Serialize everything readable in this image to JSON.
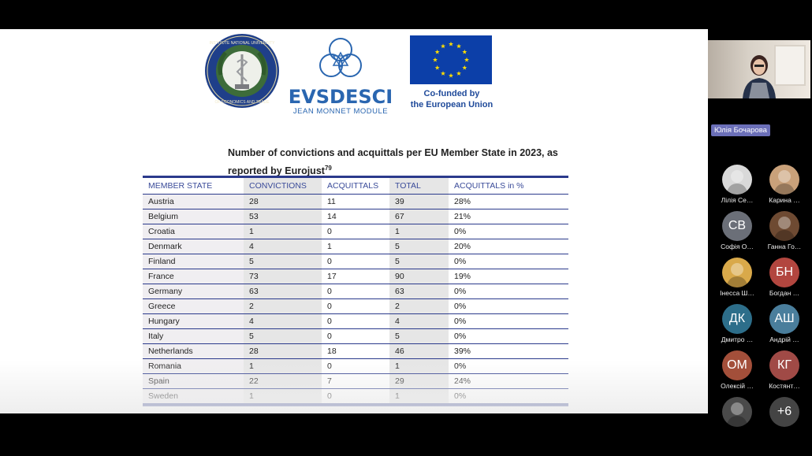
{
  "slide": {
    "evs_title": "EVSDESCI",
    "evs_subtitle": "JEAN MONNET MODULE",
    "eu_line1": "Co-funded by",
    "eu_line2": "the European Union",
    "seal_caption_top": "INSTITUTE NATIONAL UNIVERSITY",
    "seal_caption_bottom": "OF ECONOMICS AND TRADE",
    "table_caption": "Number of convictions and acquittals per EU Member State in 2023, as reported by Eurojust",
    "footnote_ref": "79",
    "headers": [
      "MEMBER STATE",
      "CONVICTIONS",
      "ACQUITTALS",
      "TOTAL",
      "ACQUITTALS in %"
    ],
    "rows": [
      [
        "Austria",
        "28",
        "11",
        "39",
        "28%"
      ],
      [
        "Belgium",
        "53",
        "14",
        "67",
        "21%"
      ],
      [
        "Croatia",
        "1",
        "0",
        "1",
        "0%"
      ],
      [
        "Denmark",
        "4",
        "1",
        "5",
        "20%"
      ],
      [
        "Finland",
        "5",
        "0",
        "5",
        "0%"
      ],
      [
        "France",
        "73",
        "17",
        "90",
        "19%"
      ],
      [
        "Germany",
        "63",
        "0",
        "63",
        "0%"
      ],
      [
        "Greece",
        "2",
        "0",
        "2",
        "0%"
      ],
      [
        "Hungary",
        "4",
        "0",
        "4",
        "0%"
      ],
      [
        "Italy",
        "5",
        "0",
        "5",
        "0%"
      ],
      [
        "Netherlands",
        "28",
        "18",
        "46",
        "39%"
      ],
      [
        "Romania",
        "1",
        "0",
        "1",
        "0%"
      ],
      [
        "Spain",
        "22",
        "7",
        "29",
        "24%"
      ],
      [
        "Sweden",
        "1",
        "0",
        "1",
        "0%"
      ]
    ]
  },
  "speaker": {
    "name": "Юлія Бочарова"
  },
  "participants": [
    {
      "initials": "",
      "name": "Лілія Се…",
      "color": "#d9d9d9",
      "photo": true
    },
    {
      "initials": "",
      "name": "Карина …",
      "color": "#c9a17a",
      "photo": true
    },
    {
      "initials": "СВ",
      "name": "Софія О…",
      "color": "#6b6f78",
      "photo": false
    },
    {
      "initials": "",
      "name": "Ганна Го…",
      "color": "#6e4a32",
      "photo": true
    },
    {
      "initials": "",
      "name": "Інесса Ш…",
      "color": "#d9a94a",
      "photo": true
    },
    {
      "initials": "БН",
      "name": "Богдан …",
      "color": "#b2463f",
      "photo": false
    },
    {
      "initials": "ДК",
      "name": "Дмитро …",
      "color": "#2d6e8a",
      "photo": false
    },
    {
      "initials": "АШ",
      "name": "Андрій …",
      "color": "#4a7e9c",
      "photo": false
    },
    {
      "initials": "ОМ",
      "name": "Олексій …",
      "color": "#a34f3a",
      "photo": false
    },
    {
      "initials": "КГ",
      "name": "Костянт…",
      "color": "#a04a46",
      "photo": false
    },
    {
      "initials": "",
      "name": "",
      "color": "#4a4a4a",
      "photo": true
    },
    {
      "initials": "+6",
      "name": "",
      "color": "#444444",
      "photo": false
    }
  ],
  "colors": {
    "table_rule": "#2b3a8c",
    "header_text": "#3a4b99",
    "evs_blue": "#2a66b0",
    "eu_flag": "#0c3fa8",
    "eu_star": "#ffdd00"
  }
}
